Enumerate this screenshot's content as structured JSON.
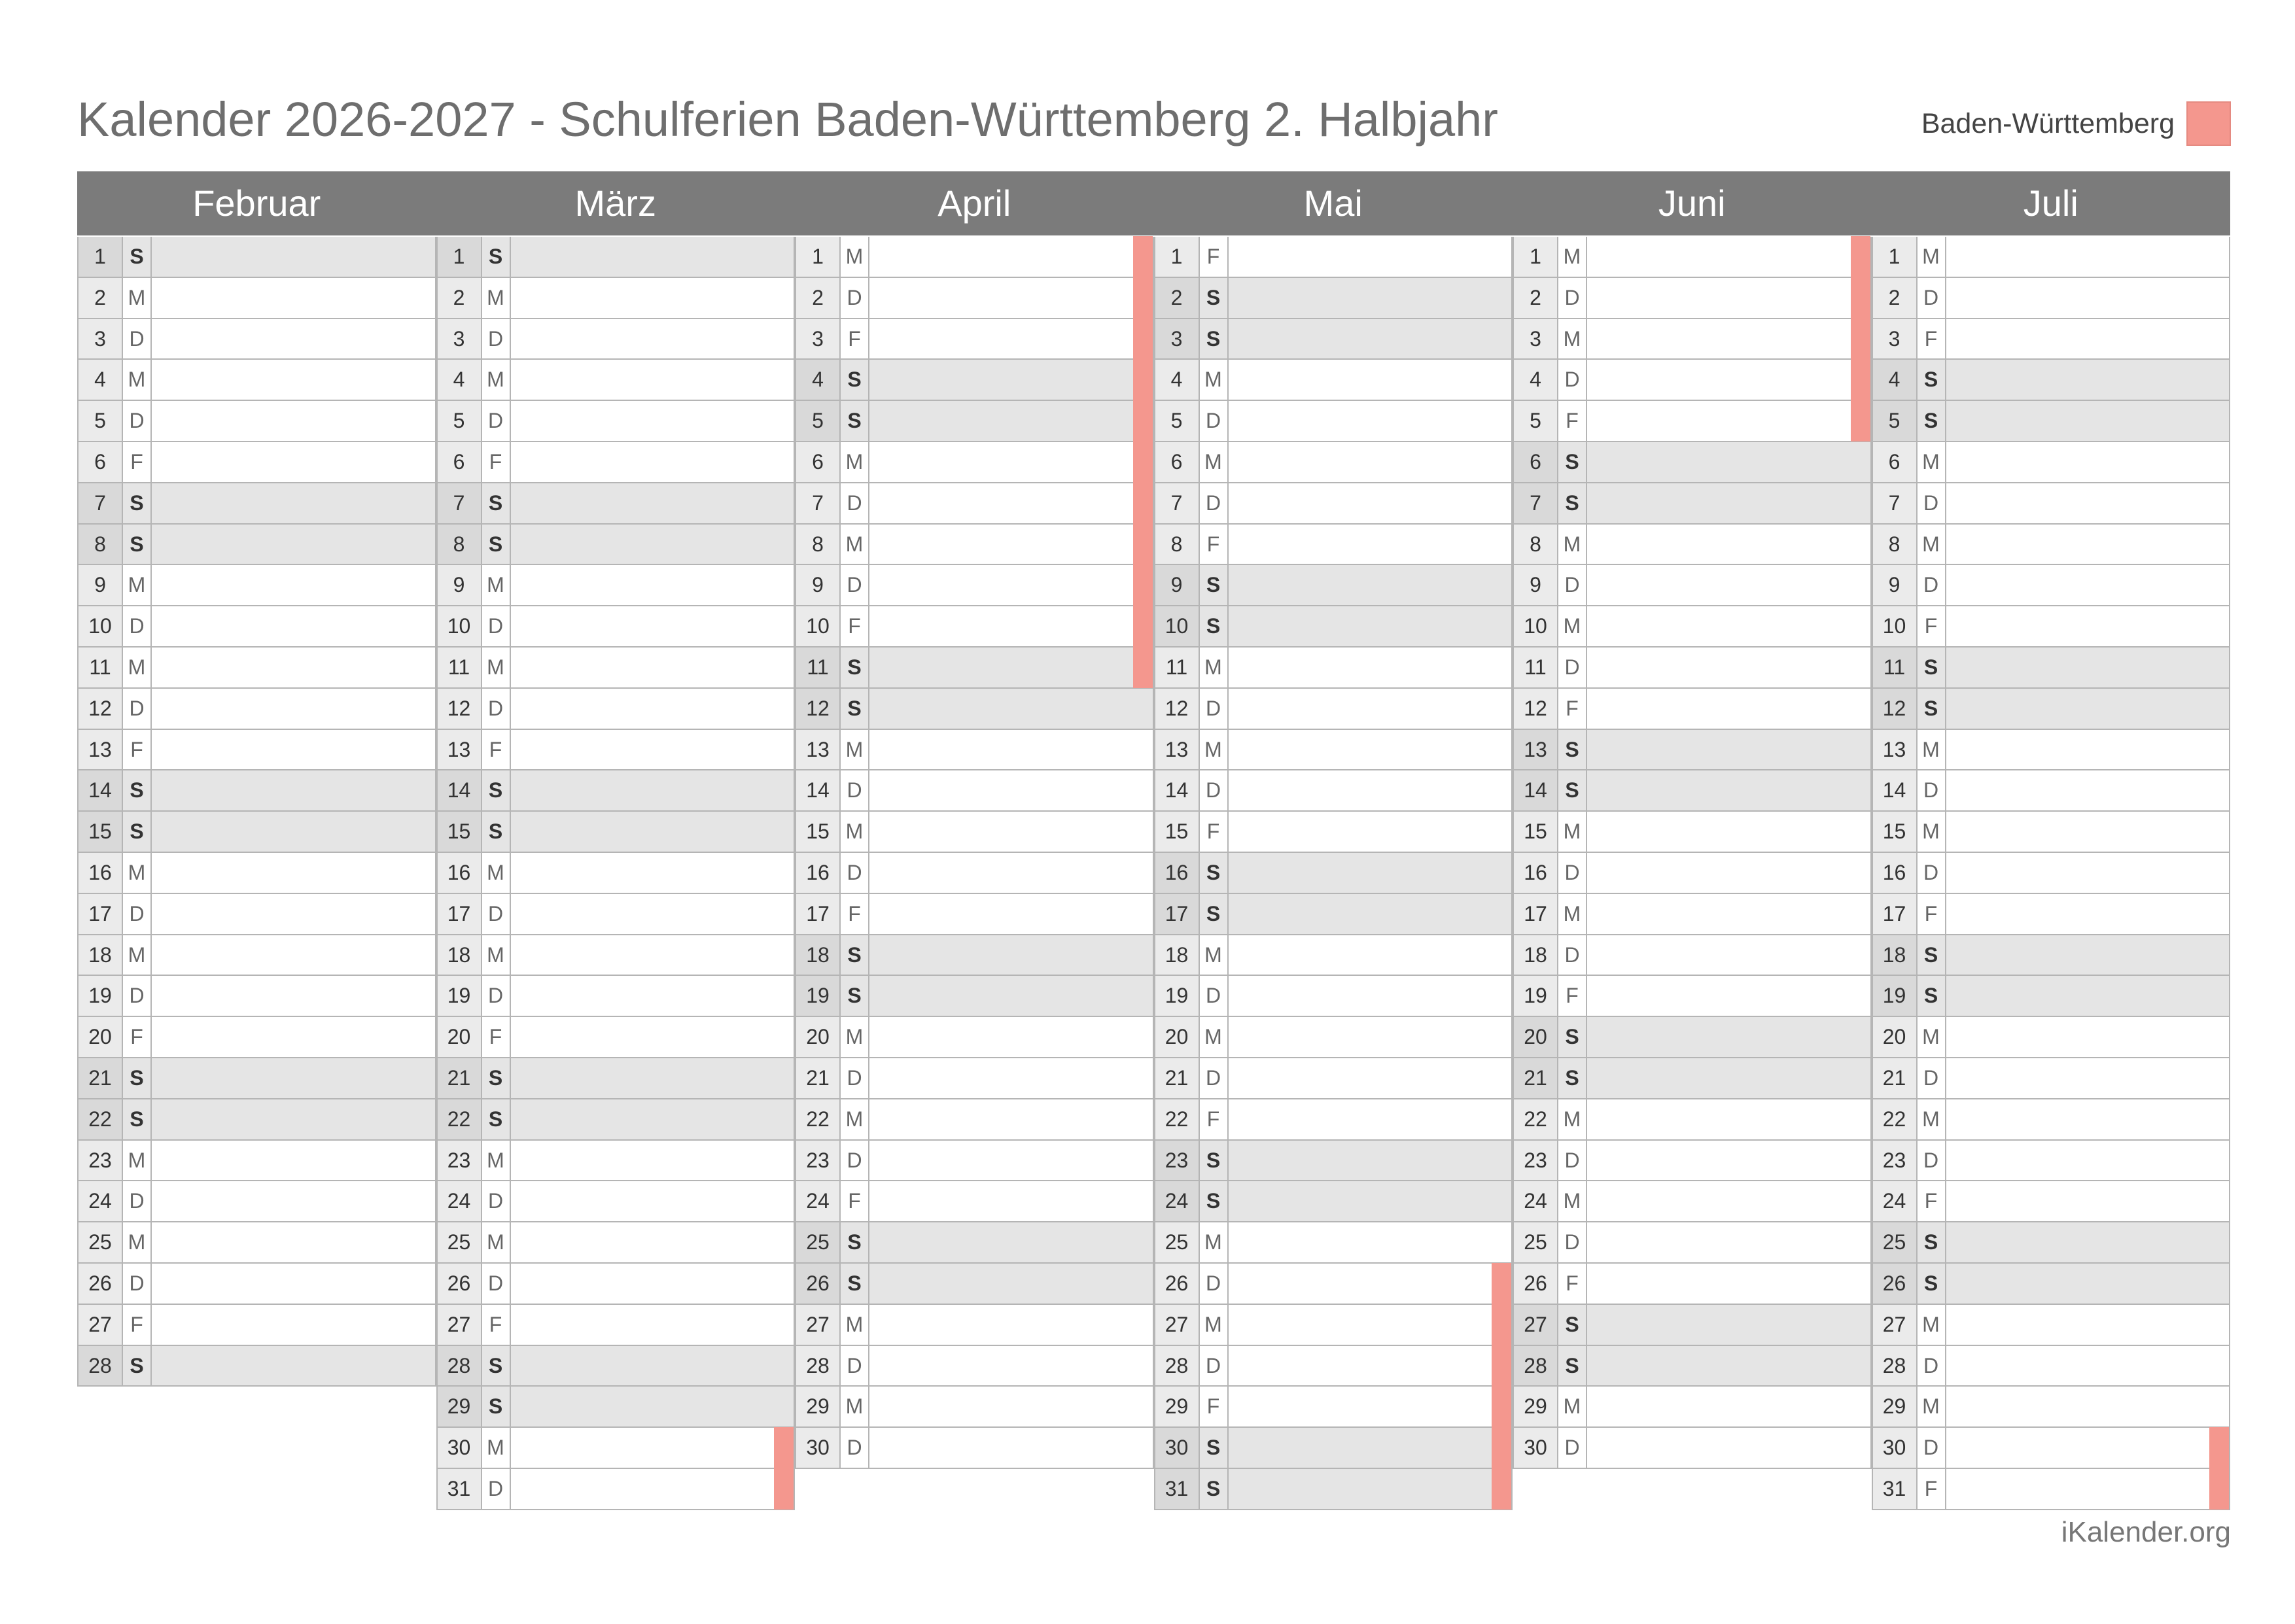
{
  "title": "Kalender 2026-2027 - Schulferien Baden-Württemberg 2. Halbjahr",
  "legend": {
    "label": "Baden-Württemberg",
    "color": "#f4978e"
  },
  "footer": "iKalender.org",
  "colors": {
    "header": "#7b7b7b",
    "weekend": "#e5e5e5",
    "holiday": "#f4978e"
  },
  "months": [
    {
      "name": "Februar",
      "first_weekday": 0,
      "days_count": 28,
      "holidays": []
    },
    {
      "name": "März",
      "first_weekday": 0,
      "days_count": 31,
      "holidays": [
        30,
        31
      ]
    },
    {
      "name": "April",
      "first_weekday": 3,
      "days_count": 30,
      "holidays": [
        1,
        2,
        3,
        4,
        5,
        6,
        7,
        8,
        9,
        10,
        11
      ]
    },
    {
      "name": "Mai",
      "first_weekday": 5,
      "days_count": 31,
      "holidays": [
        26,
        27,
        28,
        29,
        30,
        31
      ]
    },
    {
      "name": "Juni",
      "first_weekday": 1,
      "days_count": 30,
      "holidays": [
        1,
        2,
        3,
        4,
        5
      ]
    },
    {
      "name": "Juli",
      "first_weekday": 3,
      "days_count": 31,
      "holidays": [
        30,
        31
      ]
    }
  ],
  "weekday_letters": [
    "S",
    "M",
    "D",
    "M",
    "D",
    "F",
    "S"
  ]
}
